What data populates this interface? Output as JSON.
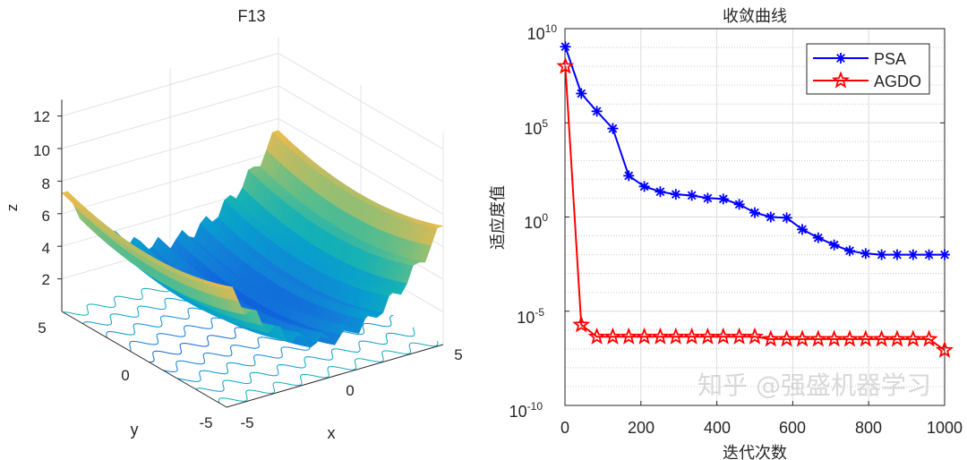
{
  "chart_data": [
    {
      "type": "surface",
      "title": "F13",
      "xlabel": "x",
      "ylabel": "y",
      "zlabel": "z",
      "xlim": [
        -5,
        5
      ],
      "ylim": [
        -5,
        5
      ],
      "zlim": [
        0,
        13
      ],
      "x_ticks": [
        "-5",
        "0",
        "5"
      ],
      "y_ticks": [
        "-5",
        "0",
        "5"
      ],
      "z_ticks": [
        "2",
        "4",
        "6",
        "8",
        "10",
        "12"
      ],
      "colormap": "parula",
      "contour_on_base": true,
      "grid": true
    },
    {
      "type": "line",
      "title": "收敛曲线",
      "xlabel": "迭代次数",
      "ylabel": "适应度值",
      "xlim": [
        0,
        1000
      ],
      "ylim": [
        1e-10,
        10000000000.0
      ],
      "yscale": "log",
      "grid": true,
      "legend_position": "top-right",
      "x_ticks": [
        "0",
        "200",
        "400",
        "600",
        "800",
        "1000"
      ],
      "y_ticks": [
        {
          "base": "10",
          "exp": "-10"
        },
        {
          "base": "10",
          "exp": "-5"
        },
        {
          "base": "10",
          "exp": "0"
        },
        {
          "base": "10",
          "exp": "5"
        },
        {
          "base": "10",
          "exp": "10"
        }
      ],
      "x": [
        1,
        43,
        84,
        126,
        168,
        209,
        251,
        292,
        334,
        376,
        417,
        459,
        500,
        542,
        584,
        625,
        667,
        709,
        750,
        792,
        834,
        875,
        917,
        959,
        1000
      ],
      "series": [
        {
          "name": "PSA",
          "color": "#0000ff",
          "marker": "asterisk",
          "values": [
            1100000000.0,
            3600000.0,
            410000.0,
            50000.0,
            155,
            42,
            22,
            16,
            14,
            10,
            9.1,
            4.7,
            1.7,
            1.0,
            0.91,
            0.22,
            0.079,
            0.033,
            0.016,
            0.0115,
            0.01,
            0.01,
            0.01,
            0.01,
            0.01
          ]
        },
        {
          "name": "AGDO",
          "color": "#ff0000",
          "marker": "pentagram",
          "values": [
            100000000.0,
            1.9e-06,
            4.4e-07,
            4.4e-07,
            4.4e-07,
            4.4e-07,
            4.4e-07,
            4.4e-07,
            4.4e-07,
            4.4e-07,
            4.4e-07,
            4.4e-07,
            4.4e-07,
            3.3e-07,
            3.3e-07,
            3.3e-07,
            3.3e-07,
            3.3e-07,
            3.3e-07,
            3.3e-07,
            3.3e-07,
            3.3e-07,
            3.3e-07,
            3.3e-07,
            8.5e-08
          ]
        }
      ]
    }
  ],
  "watermark": "知乎 @强盛机器学习"
}
